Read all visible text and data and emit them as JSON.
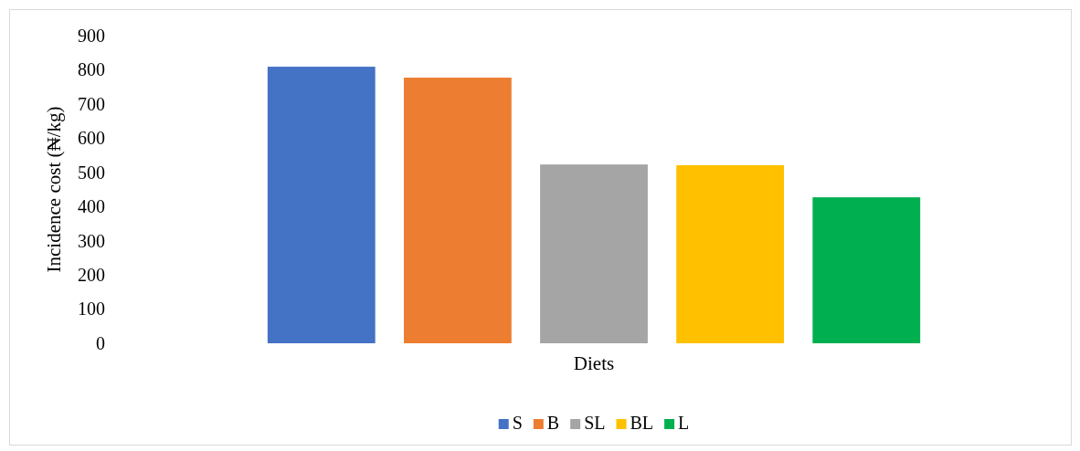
{
  "chart_data": {
    "type": "bar",
    "ylabel": "Incidence cost (₦/kg)",
    "xlabel": "Diets",
    "categories": [
      null
    ],
    "series": [
      {
        "name": "S",
        "color": "#4472c4",
        "values": [
          809
        ]
      },
      {
        "name": "B",
        "color": "#ed7d31",
        "values": [
          777
        ]
      },
      {
        "name": "SL",
        "color": "#a5a5a5",
        "values": [
          523
        ]
      },
      {
        "name": "BL",
        "color": "#ffc000",
        "values": [
          521
        ]
      },
      {
        "name": "L",
        "color": "#00b050",
        "values": [
          427
        ]
      }
    ],
    "ylim": [
      0,
      900
    ],
    "yticks": [
      0,
      100,
      200,
      300,
      400,
      500,
      600,
      700,
      800,
      900
    ],
    "grid": false,
    "legend": "bottom"
  }
}
